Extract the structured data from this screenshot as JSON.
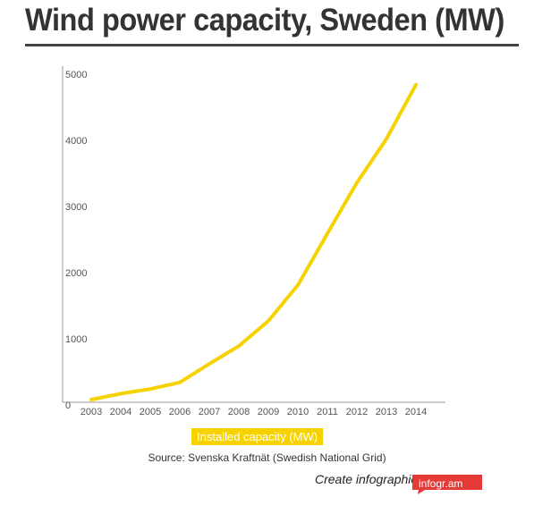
{
  "chart_data": {
    "type": "line",
    "title": "Wind power capacity, Sweden  (MW)",
    "x": [
      "2003",
      "2004",
      "2005",
      "2006",
      "2007",
      "2008",
      "2009",
      "2010",
      "2011",
      "2012",
      "2013",
      "2014"
    ],
    "series": [
      {
        "name": "Installed capacity (MW)",
        "values": [
          40,
          130,
          200,
          300,
          580,
          850,
          1230,
          1770,
          2550,
          3320,
          3980,
          4800
        ],
        "color": "#f6d200"
      }
    ],
    "ylim": [
      0,
      5000
    ],
    "yticks": [
      0,
      1000,
      2000,
      3000,
      4000,
      5000
    ],
    "grid": false,
    "legend": "bottom",
    "source": "Source: Svenska Kraftnät (Swedish National Grid)"
  },
  "branding": {
    "text": "Create infographics",
    "badge_label": "infogr.am",
    "badge_color": "#e53935"
  }
}
